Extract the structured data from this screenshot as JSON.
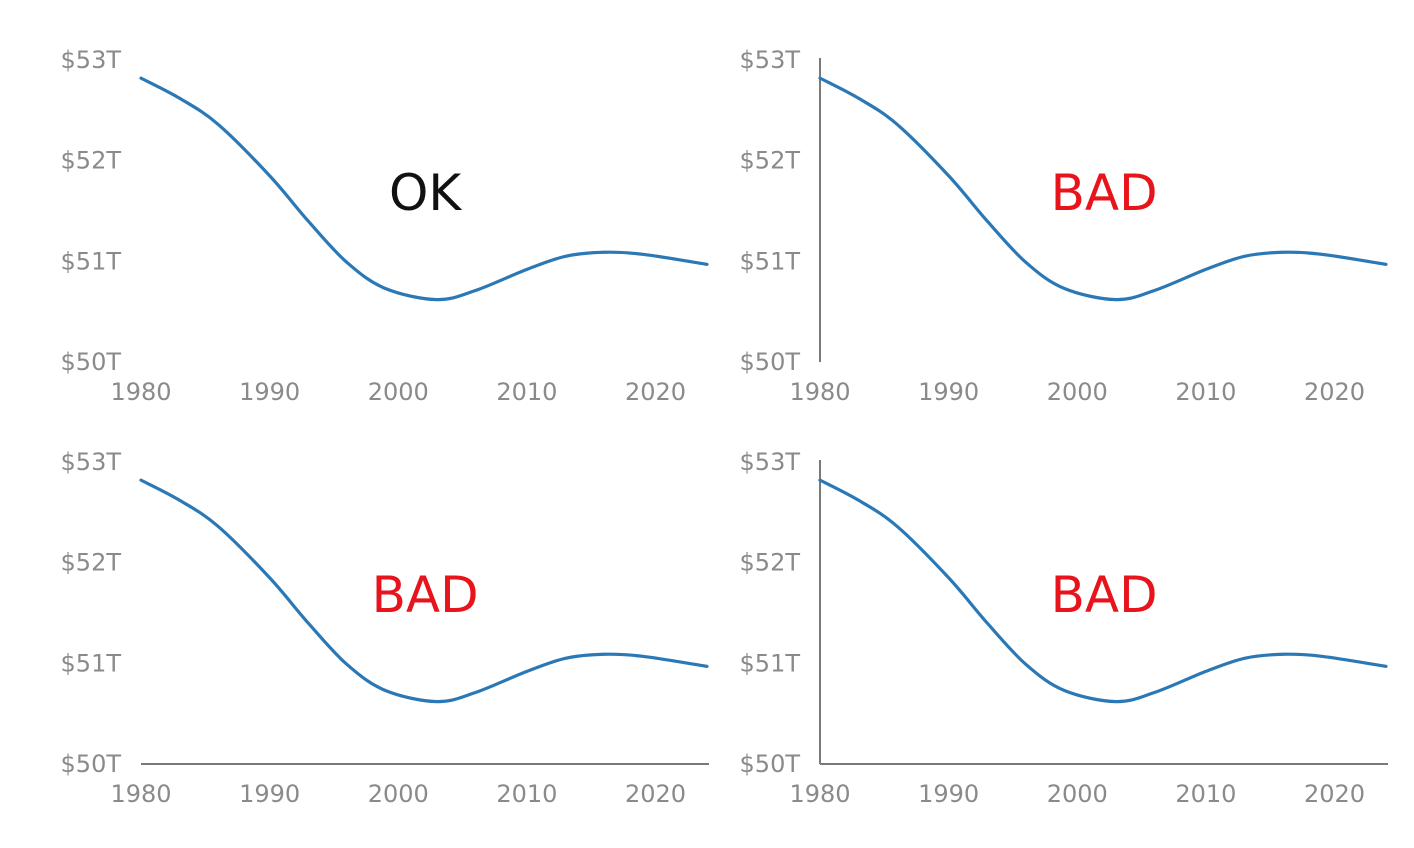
{
  "colors": {
    "series": "#2a78b5",
    "axis": "#7a7a7a",
    "tick_text": "#8a8a8a",
    "ok": "#111111",
    "bad": "#e8141c"
  },
  "chart_data": [
    {
      "type": "line",
      "annotation": "OK",
      "annotation_color": "#111111",
      "show_x_axis_line": false,
      "show_y_axis_line": false,
      "x": [
        1980,
        1983,
        1986,
        1990,
        1993,
        1996,
        1999,
        2003,
        2006,
        2010,
        2013,
        2016,
        2019,
        2024
      ],
      "series": [
        {
          "values": [
            52.82,
            52.62,
            52.36,
            51.85,
            51.4,
            50.99,
            50.73,
            50.62,
            50.71,
            50.92,
            51.05,
            51.09,
            51.07,
            50.97
          ]
        }
      ],
      "xticks": [
        1980,
        1990,
        2000,
        2010,
        2020
      ],
      "yticks": [
        "$50T",
        "$51T",
        "$52T",
        "$53T"
      ],
      "ytick_values": [
        50,
        51,
        52,
        53
      ],
      "xlim": [
        1980,
        2024
      ],
      "ylim": [
        50,
        53
      ],
      "grid": false
    },
    {
      "type": "line",
      "annotation": "BAD",
      "annotation_color": "#e8141c",
      "show_x_axis_line": false,
      "show_y_axis_line": true,
      "x": [
        1980,
        1983,
        1986,
        1990,
        1993,
        1996,
        1999,
        2003,
        2006,
        2010,
        2013,
        2016,
        2019,
        2024
      ],
      "series": [
        {
          "values": [
            52.82,
            52.62,
            52.36,
            51.85,
            51.4,
            50.99,
            50.73,
            50.62,
            50.71,
            50.92,
            51.05,
            51.09,
            51.07,
            50.97
          ]
        }
      ],
      "xticks": [
        1980,
        1990,
        2000,
        2010,
        2020
      ],
      "yticks": [
        "$50T",
        "$51T",
        "$52T",
        "$53T"
      ],
      "ytick_values": [
        50,
        51,
        52,
        53
      ],
      "xlim": [
        1980,
        2024
      ],
      "ylim": [
        50,
        53
      ],
      "grid": false
    },
    {
      "type": "line",
      "annotation": "BAD",
      "annotation_color": "#e8141c",
      "show_x_axis_line": true,
      "show_y_axis_line": false,
      "x": [
        1980,
        1983,
        1986,
        1990,
        1993,
        1996,
        1999,
        2003,
        2006,
        2010,
        2013,
        2016,
        2019,
        2024
      ],
      "series": [
        {
          "values": [
            52.82,
            52.62,
            52.36,
            51.85,
            51.4,
            50.99,
            50.73,
            50.62,
            50.71,
            50.92,
            51.05,
            51.09,
            51.07,
            50.97
          ]
        }
      ],
      "xticks": [
        1980,
        1990,
        2000,
        2010,
        2020
      ],
      "yticks": [
        "$50T",
        "$51T",
        "$52T",
        "$53T"
      ],
      "ytick_values": [
        50,
        51,
        52,
        53
      ],
      "xlim": [
        1980,
        2024
      ],
      "ylim": [
        50,
        53
      ],
      "grid": false
    },
    {
      "type": "line",
      "annotation": "BAD",
      "annotation_color": "#e8141c",
      "show_x_axis_line": true,
      "show_y_axis_line": true,
      "x": [
        1980,
        1983,
        1986,
        1990,
        1993,
        1996,
        1999,
        2003,
        2006,
        2010,
        2013,
        2016,
        2019,
        2024
      ],
      "series": [
        {
          "values": [
            52.82,
            52.62,
            52.36,
            51.85,
            51.4,
            50.99,
            50.73,
            50.62,
            50.71,
            50.92,
            51.05,
            51.09,
            51.07,
            50.97
          ]
        }
      ],
      "xticks": [
        1980,
        1990,
        2000,
        2010,
        2020
      ],
      "yticks": [
        "$50T",
        "$51T",
        "$52T",
        "$53T"
      ],
      "ytick_values": [
        50,
        51,
        52,
        53
      ],
      "xlim": [
        1980,
        2024
      ],
      "ylim": [
        50,
        53
      ],
      "grid": false
    }
  ]
}
